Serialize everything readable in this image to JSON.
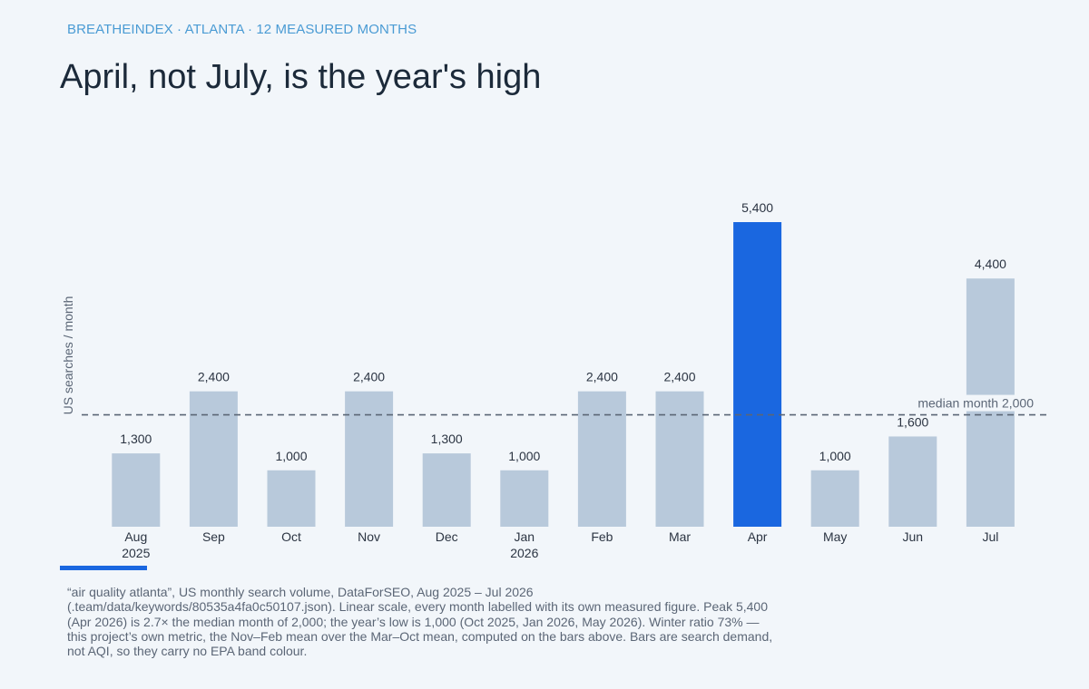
{
  "header": {
    "kicker": "BREATHEINDEX · ATLANTA · 12 MEASURED MONTHS",
    "title": "April, not July, is the year's high"
  },
  "caption": {
    "lines": [
      "“air quality atlanta”, US monthly search volume, DataForSEO, Aug 2025 – Jul 2026",
      "(.team/data/keywords/80535a4fa0c50107.json). Linear scale, every month labelled with its own measured figure. Peak 5,400",
      "(Apr 2026) is 2.7× the median month of 2,000; the year’s low is 1,000 (Oct 2025, Jan 2026, May 2026). Winter ratio 73% —",
      "this project’s own metric, the Nov–Feb mean over the Mar–Oct mean, computed on the bars above. Bars are search demand,",
      "not AQI, so they carry no EPA band colour."
    ]
  },
  "colors": {
    "bar": "#b8c9db",
    "highlight": "#1a67e0",
    "median_line": "#5b6676",
    "text": "#2b3442",
    "axis_label": "#5b6676"
  },
  "chart_data": {
    "type": "bar",
    "categories": [
      "Aug",
      "Sep",
      "Oct",
      "Nov",
      "Dec",
      "Jan",
      "Feb",
      "Mar",
      "Apr",
      "May",
      "Jun",
      "Jul"
    ],
    "category_sublabels": [
      "2025",
      "",
      "",
      "",
      "",
      "2026",
      "",
      "",
      "",
      "",
      "",
      ""
    ],
    "values": [
      1300,
      2400,
      1000,
      2400,
      1300,
      1000,
      2400,
      2400,
      5400,
      1000,
      1600,
      4400
    ],
    "value_labels": [
      "1,300",
      "2,400",
      "1,000",
      "2,400",
      "1,300",
      "1,000",
      "2,400",
      "2,400",
      "5,400",
      "1,000",
      "1,600",
      "4,400"
    ],
    "highlight_index": 8,
    "ylabel": "US searches / month",
    "xlabel": "",
    "ylim": [
      0,
      5400
    ],
    "grid": false,
    "reference_line": {
      "value": 2000,
      "label": "median month",
      "value_label": "2,000",
      "style": "dashed"
    }
  }
}
